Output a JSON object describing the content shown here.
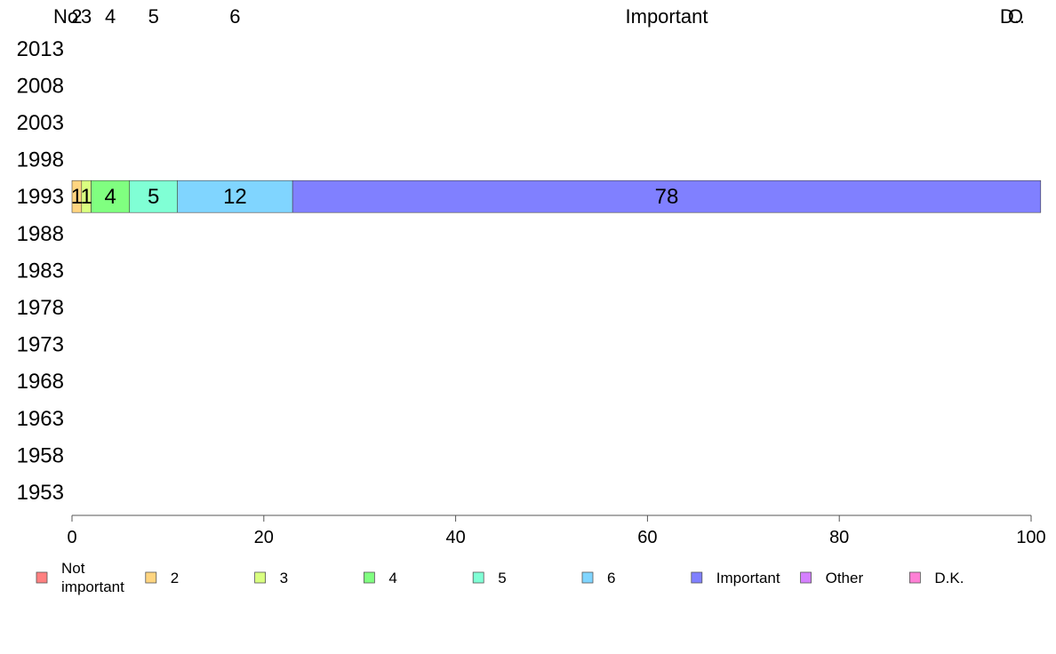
{
  "chart_data": {
    "type": "bar",
    "orientation": "horizontal",
    "stacked": true,
    "categories": [
      "2013",
      "2008",
      "2003",
      "1998",
      "1993",
      "1988",
      "1983",
      "1978",
      "1973",
      "1968",
      "1963",
      "1958",
      "1953"
    ],
    "series": [
      {
        "name": "Not important",
        "color": "#ff8080",
        "values": [
          null,
          null,
          null,
          null,
          0,
          null,
          null,
          null,
          null,
          null,
          null,
          null,
          null
        ]
      },
      {
        "name": "2",
        "color": "#ffd580",
        "values": [
          null,
          null,
          null,
          null,
          1,
          null,
          null,
          null,
          null,
          null,
          null,
          null,
          null
        ]
      },
      {
        "name": "3",
        "color": "#d9ff80",
        "values": [
          null,
          null,
          null,
          null,
          1,
          null,
          null,
          null,
          null,
          null,
          null,
          null,
          null
        ]
      },
      {
        "name": "4",
        "color": "#80ff80",
        "values": [
          null,
          null,
          null,
          null,
          4,
          null,
          null,
          null,
          null,
          null,
          null,
          null,
          null
        ]
      },
      {
        "name": "5",
        "color": "#80ffd5",
        "values": [
          null,
          null,
          null,
          null,
          5,
          null,
          null,
          null,
          null,
          null,
          null,
          null,
          null
        ]
      },
      {
        "name": "6",
        "color": "#80d5ff",
        "values": [
          null,
          null,
          null,
          null,
          12,
          null,
          null,
          null,
          null,
          null,
          null,
          null,
          null
        ]
      },
      {
        "name": "Important",
        "color": "#8080ff",
        "values": [
          null,
          null,
          null,
          null,
          78,
          null,
          null,
          null,
          null,
          null,
          null,
          null,
          null
        ]
      },
      {
        "name": "Other",
        "color": "#d580ff",
        "values": [
          null,
          null,
          null,
          null,
          0,
          null,
          null,
          null,
          null,
          null,
          null,
          null,
          null
        ]
      },
      {
        "name": "D.K.",
        "color": "#ff80d5",
        "values": [
          null,
          null,
          null,
          null,
          0,
          null,
          null,
          null,
          null,
          null,
          null,
          null,
          null
        ]
      }
    ],
    "segment_labels": [
      "1",
      "1",
      "4",
      "5",
      "12",
      "78"
    ],
    "top_labels": [
      "No",
      "2",
      "3",
      "4",
      "5",
      "6",
      "Important",
      "O",
      "D.."
    ],
    "xlim": [
      0,
      100
    ],
    "xticks": [
      "0",
      "20",
      "40",
      "60",
      "80",
      "100"
    ],
    "legend": {
      "placement": "bottom",
      "entries": [
        "Not\nimportant",
        "2",
        "3",
        "4",
        "5",
        "6",
        "Important",
        "Other",
        "D.K."
      ]
    },
    "title": "",
    "xlabel": "",
    "ylabel": "",
    "grid": false
  }
}
